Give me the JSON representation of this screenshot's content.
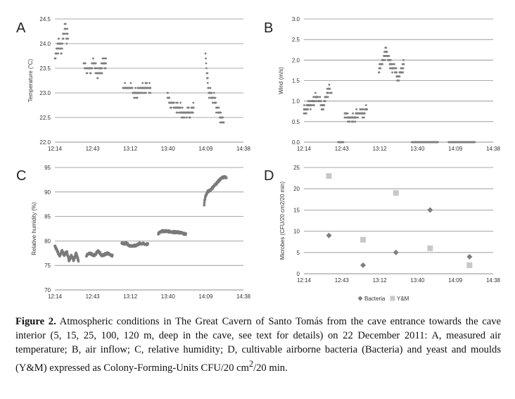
{
  "chart_data": [
    {
      "id": "A",
      "type": "scatter",
      "panel_label": "A",
      "title": "",
      "xlabel": "",
      "ylabel": "Temperature (°C)",
      "ylim": [
        22.0,
        24.5
      ],
      "yticks": [
        22.0,
        22.5,
        23.0,
        23.5,
        24.0,
        24.5
      ],
      "ytick_labels": [
        "22.0",
        "22.5",
        "23.0",
        "23.5",
        "24.0",
        "24.5"
      ],
      "xlim_min": [
        734,
        878
      ],
      "xtick_labels": [
        "12:14",
        "12:43",
        "13:12",
        "13:40",
        "14:09",
        "14:38"
      ],
      "grid": true,
      "marker": "small-dot",
      "color": "#7f7f7f",
      "segments": [
        {
          "t": [
            734,
            744
          ],
          "v": [
            [
              0,
              23.7
            ],
            [
              0.1,
              23.8
            ],
            [
              0.2,
              23.9
            ],
            [
              0.3,
              24.0
            ],
            [
              0.45,
              24.0
            ],
            [
              0.5,
              23.8
            ],
            [
              0.6,
              24.1
            ],
            [
              0.7,
              24.2
            ],
            [
              0.8,
              24.3
            ],
            [
              0.85,
              24.2
            ],
            [
              0.9,
              24.0
            ],
            [
              0.95,
              24.3
            ],
            [
              1.0,
              24.1
            ]
          ]
        },
        {
          "t": [
            756,
            773
          ],
          "v": [
            [
              0,
              23.6
            ],
            [
              0.15,
              23.5
            ],
            [
              0.3,
              23.5
            ],
            [
              0.45,
              23.6
            ],
            [
              0.6,
              23.4
            ],
            [
              0.75,
              23.5
            ],
            [
              0.9,
              23.6
            ],
            [
              1.0,
              23.6
            ]
          ]
        },
        {
          "t": [
            786,
            807
          ],
          "v": [
            [
              0,
              23.1
            ],
            [
              0.3,
              23.1
            ],
            [
              0.4,
              23.0
            ],
            [
              0.55,
              23.0
            ],
            [
              0.65,
              23.1
            ],
            [
              1.0,
              23.1
            ]
          ]
        },
        {
          "t": [
            820,
            840
          ],
          "v": [
            [
              0,
              23.0
            ],
            [
              0.08,
              22.8
            ],
            [
              0.2,
              22.8
            ],
            [
              0.3,
              22.7
            ],
            [
              0.45,
              22.7
            ],
            [
              0.55,
              22.6
            ],
            [
              0.8,
              22.6
            ],
            [
              1.0,
              22.7
            ]
          ]
        },
        {
          "t": [
            849,
            863
          ],
          "v": [
            [
              0,
              23.8
            ],
            [
              0.05,
              23.5
            ],
            [
              0.12,
              23.2
            ],
            [
              0.18,
              23.0
            ],
            [
              0.3,
              23.0
            ],
            [
              0.4,
              22.9
            ],
            [
              0.55,
              22.8
            ],
            [
              0.7,
              22.6
            ],
            [
              0.85,
              22.5
            ],
            [
              1.0,
              22.4
            ]
          ]
        }
      ]
    },
    {
      "id": "B",
      "type": "scatter",
      "panel_label": "B",
      "title": "",
      "xlabel": "",
      "ylabel": "Wind (m/s)",
      "ylim": [
        0.0,
        3.0
      ],
      "yticks": [
        0.0,
        0.5,
        1.0,
        1.5,
        2.0,
        2.5,
        3.0
      ],
      "ytick_labels": [
        "0.0",
        "0.5",
        "1.0",
        "1.5",
        "2.0",
        "2.5",
        "3.0"
      ],
      "xlim_min": [
        734,
        878
      ],
      "xtick_labels": [
        "12:14",
        "12:43",
        "13:12",
        "13:40",
        "14:09",
        "14:38"
      ],
      "grid": true,
      "marker": "small-dot",
      "color": "#7f7f7f",
      "segments": [
        {
          "t": [
            734,
            755
          ],
          "v": [
            [
              0,
              0.8
            ],
            [
              0.2,
              0.9
            ],
            [
              0.35,
              1.0
            ],
            [
              0.45,
              1.1
            ],
            [
              0.55,
              1.0
            ],
            [
              0.7,
              0.9
            ],
            [
              0.8,
              1.1
            ],
            [
              0.9,
              1.3
            ],
            [
              1.0,
              1.2
            ]
          ]
        },
        {
          "t": [
            760,
            764
          ],
          "v": [
            [
              0,
              0.0
            ],
            [
              1.0,
              0.0
            ]
          ]
        },
        {
          "t": [
            765,
            782
          ],
          "v": [
            [
              0,
              0.7
            ],
            [
              0.2,
              0.6
            ],
            [
              0.4,
              0.6
            ],
            [
              0.6,
              0.7
            ],
            [
              0.8,
              0.7
            ],
            [
              1.0,
              0.8
            ]
          ]
        },
        {
          "t": [
            791,
            810
          ],
          "v": [
            [
              0,
              1.7
            ],
            [
              0.15,
              2.0
            ],
            [
              0.3,
              2.2
            ],
            [
              0.45,
              1.9
            ],
            [
              0.6,
              1.8
            ],
            [
              0.75,
              1.6
            ],
            [
              0.9,
              1.7
            ],
            [
              1.0,
              1.9
            ]
          ]
        },
        {
          "t": [
            816,
            836
          ],
          "v": [
            [
              0,
              0.0
            ],
            [
              1.0,
              0.0
            ]
          ]
        },
        {
          "t": [
            844,
            864
          ],
          "v": [
            [
              0,
              0.0
            ],
            [
              1.0,
              0.0
            ]
          ]
        }
      ]
    },
    {
      "id": "C",
      "type": "scatter",
      "panel_label": "C",
      "title": "",
      "xlabel": "",
      "ylabel": "Relative humidity (%)",
      "ylim": [
        70,
        95
      ],
      "yticks": [
        70,
        75,
        80,
        85,
        90,
        95
      ],
      "ytick_labels": [
        "70",
        "75",
        "80",
        "85",
        "90",
        "95"
      ],
      "xlim_min": [
        734,
        878
      ],
      "xtick_labels": [
        "12:14",
        "12:43",
        "13:12",
        "13:40",
        "14:09",
        "14:38"
      ],
      "grid": true,
      "marker": "dense-line",
      "color": "#7a7a7a",
      "segments": [
        {
          "t": [
            734,
            752
          ],
          "v": [
            [
              0,
              79.0
            ],
            [
              0.1,
              78.0
            ],
            [
              0.2,
              77.0
            ],
            [
              0.3,
              78.0
            ],
            [
              0.4,
              77.0
            ],
            [
              0.5,
              78.0
            ],
            [
              0.6,
              76.0
            ],
            [
              0.7,
              77.0
            ],
            [
              0.8,
              76.0
            ],
            [
              0.9,
              77.5
            ],
            [
              1.0,
              76.0
            ]
          ]
        },
        {
          "t": [
            758,
            778
          ],
          "v": [
            [
              0,
              77.0
            ],
            [
              0.15,
              77.5
            ],
            [
              0.3,
              77.0
            ],
            [
              0.45,
              78.0
            ],
            [
              0.6,
              77.0
            ],
            [
              0.8,
              77.5
            ],
            [
              1.0,
              77.0
            ]
          ]
        },
        {
          "t": [
            785,
            805
          ],
          "v": [
            [
              0,
              79.5
            ],
            [
              0.2,
              79.5
            ],
            [
              0.3,
              79.0
            ],
            [
              0.5,
              79.0
            ],
            [
              0.7,
              79.5
            ],
            [
              1.0,
              79.3
            ]
          ]
        },
        {
          "t": [
            813,
            834
          ],
          "v": [
            [
              0,
              81.5
            ],
            [
              0.1,
              82.0
            ],
            [
              0.3,
              82.0
            ],
            [
              0.6,
              81.8
            ],
            [
              0.8,
              81.7
            ],
            [
              1.0,
              81.4
            ]
          ]
        },
        {
          "t": [
            848,
            865
          ],
          "v": [
            [
              0,
              87.5
            ],
            [
              0.05,
              89.0
            ],
            [
              0.15,
              90.0
            ],
            [
              0.3,
              90.5
            ],
            [
              0.5,
              91.5
            ],
            [
              0.7,
              92.5
            ],
            [
              0.85,
              93.0
            ],
            [
              1.0,
              93.0
            ]
          ]
        }
      ]
    },
    {
      "id": "D",
      "type": "scatter",
      "panel_label": "D",
      "title": "",
      "xlabel": "",
      "ylabel": "Microbes (CFU/20 cm2/20 min)",
      "ylim": [
        0,
        25
      ],
      "yticks": [
        0,
        5,
        10,
        15,
        20,
        25
      ],
      "ytick_labels": [
        "0",
        "5",
        "10",
        "15",
        "20",
        "25"
      ],
      "xlim_min": [
        734,
        878
      ],
      "xtick_labels": [
        "12:14",
        "12:43",
        "13:12",
        "13:40",
        "14:09",
        "14:38"
      ],
      "grid": true,
      "legend": "bottom",
      "series": [
        {
          "name": "Bacteria",
          "marker": "diamond",
          "color": "#7f7f7f",
          "x": [
            753,
            779,
            804,
            830,
            860
          ],
          "y": [
            9,
            2,
            5,
            15,
            4
          ]
        },
        {
          "name": "Y&M",
          "marker": "square",
          "color": "#c8c8c8",
          "x": [
            753,
            779,
            804,
            830,
            860
          ],
          "y": [
            23,
            8,
            19,
            6,
            2
          ]
        }
      ]
    }
  ],
  "caption": {
    "label": "Figure 2.",
    "text": " Atmospheric conditions in The Great Cavern of Santo Tomás from the cave entrance towards the cave interior (5, 15, 25, 100, 120 m, deep in the cave, see text for details) on 22 December 2011: A, measured air temperature; B, air inflow; C, relative humidity; D, cultivable airborne bacteria (Bacteria) and yeast and moulds (Y&M) expressed as Colony-Forming-Units CFU/20 cm",
    "sup1": "2",
    "mid": "/20 min.",
    "tail": ""
  }
}
